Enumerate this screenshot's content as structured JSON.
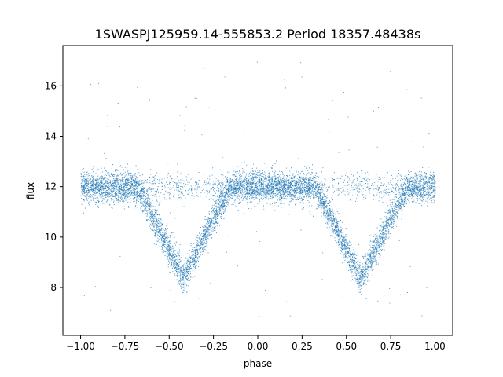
{
  "chart_data": {
    "type": "scatter",
    "title": "1SWASPJ125959.14-555853.2 Period 18357.48438s",
    "xlabel": "phase",
    "ylabel": "flux",
    "xlim": [
      -1.1,
      1.1
    ],
    "ylim": [
      6.1,
      17.6
    ],
    "xticks": [
      -1.0,
      -0.75,
      -0.5,
      -0.25,
      0.0,
      0.25,
      0.5,
      0.75,
      1.0
    ],
    "xtick_labels": [
      "−1.00",
      "−0.75",
      "−0.50",
      "−0.25",
      "0.00",
      "0.25",
      "0.50",
      "0.75",
      "1.00"
    ],
    "yticks": [
      8,
      10,
      12,
      14,
      16
    ],
    "ytick_labels": [
      "8",
      "10",
      "12",
      "14",
      "16"
    ],
    "grid": false,
    "legend": "none",
    "marker_color": "#1f77b4",
    "series": [
      {
        "description_free": true,
        "profile": {
          "baseline_flux": 12.0,
          "baseline_scatter": 0.3,
          "eclipse_centers": [
            -0.42,
            0.58
          ],
          "eclipse_min_flux": 8.4,
          "eclipse_half_width": 0.26,
          "x_range": [
            -1.0,
            1.0
          ],
          "outlier_range": [
            6.8,
            17.1
          ]
        }
      }
    ]
  }
}
